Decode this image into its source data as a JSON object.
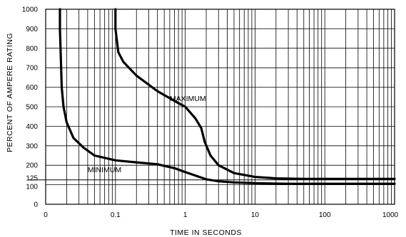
{
  "chart_data": {
    "type": "line",
    "xlabel": "TIME IN SECONDS",
    "ylabel": "PERCENT OF AMPERE RATING",
    "x_scale": "log",
    "xlim": [
      0.01,
      1000
    ],
    "ylim": [
      0,
      1000
    ],
    "grid": true,
    "x_ticks": [
      {
        "value": 0.01,
        "label": "0"
      },
      {
        "value": 0.1,
        "label": "0.1"
      },
      {
        "value": 1,
        "label": "1"
      },
      {
        "value": 10,
        "label": "10"
      },
      {
        "value": 100,
        "label": "100"
      },
      {
        "value": 1000,
        "label": "1000"
      }
    ],
    "y_ticks": [
      {
        "value": 0,
        "label": "0"
      },
      {
        "value": 100,
        "label": "100"
      },
      {
        "value": 125,
        "label": "125"
      },
      {
        "value": 200,
        "label": "200"
      },
      {
        "value": 300,
        "label": "300"
      },
      {
        "value": 400,
        "label": "400"
      },
      {
        "value": 500,
        "label": "500"
      },
      {
        "value": 600,
        "label": "600"
      },
      {
        "value": 700,
        "label": "700"
      },
      {
        "value": 800,
        "label": "800"
      },
      {
        "value": 900,
        "label": "900"
      },
      {
        "value": 1000,
        "label": "1000"
      }
    ],
    "series": [
      {
        "name": "MAXIMUM",
        "label_at": {
          "x": 0.6,
          "y": 530
        },
        "x": [
          0.1,
          0.1,
          0.11,
          0.13,
          0.2,
          0.4,
          0.7,
          1.0,
          1.4,
          1.7,
          1.9,
          2.3,
          3,
          5,
          10,
          20,
          50,
          100,
          300,
          1000
        ],
        "y": [
          1000,
          900,
          780,
          730,
          660,
          580,
          530,
          500,
          440,
          390,
          320,
          250,
          200,
          160,
          140,
          133,
          130,
          130,
          130,
          130
        ]
      },
      {
        "name": "MINIMUM",
        "label_at": {
          "x": 0.04,
          "y": 165
        },
        "x": [
          0.016,
          0.016,
          0.017,
          0.018,
          0.02,
          0.025,
          0.035,
          0.05,
          0.1,
          0.2,
          0.4,
          0.7,
          1.0,
          2,
          3,
          5,
          10,
          30,
          100,
          1000
        ],
        "y": [
          1000,
          900,
          600,
          500,
          420,
          340,
          290,
          250,
          225,
          215,
          205,
          185,
          165,
          128,
          118,
          112,
          108,
          105,
          105,
          105
        ]
      }
    ]
  }
}
